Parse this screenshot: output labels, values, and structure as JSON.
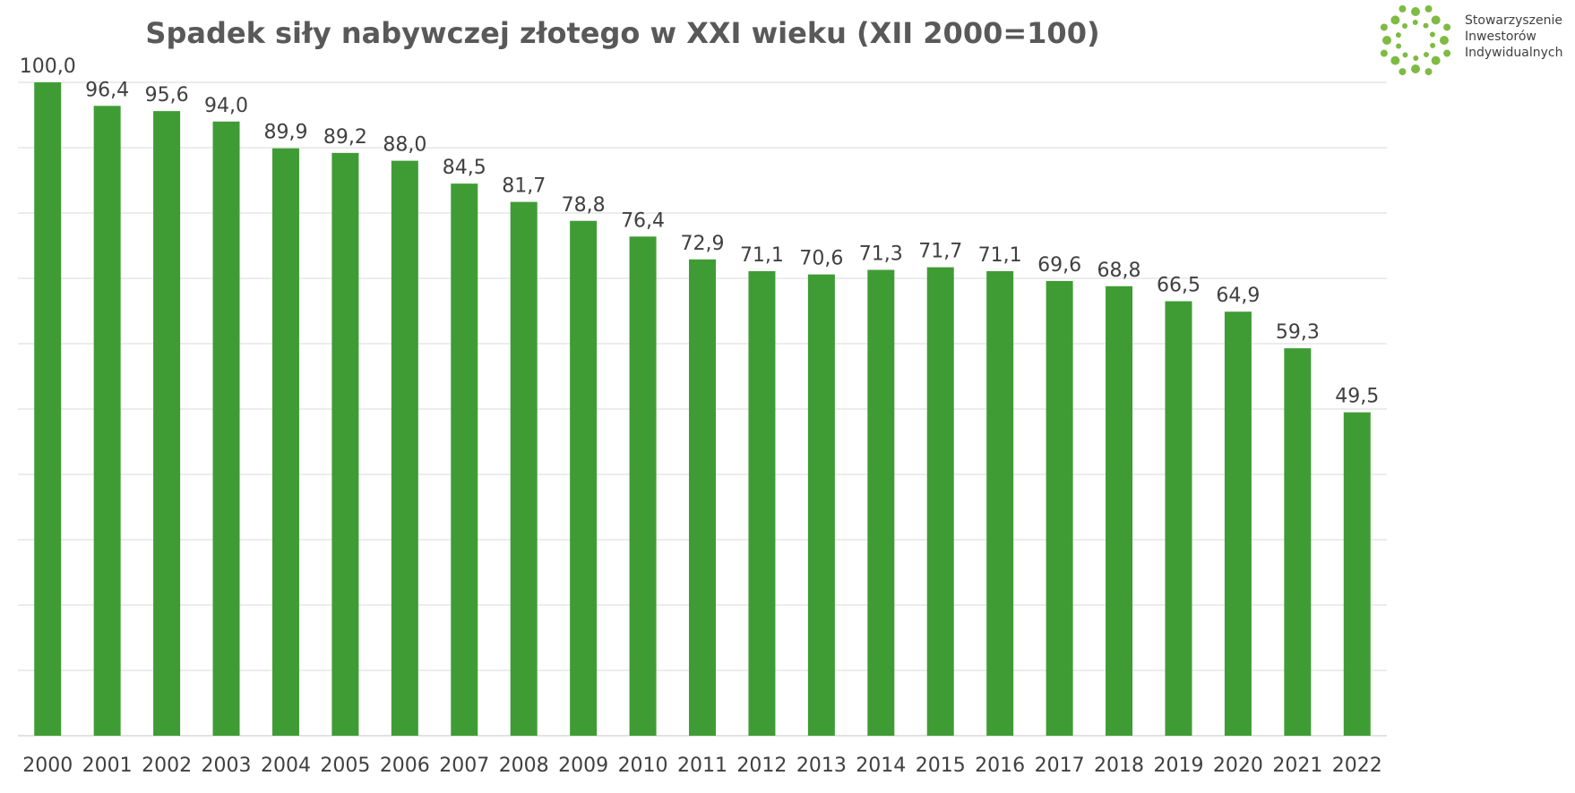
{
  "chart_data": {
    "type": "bar",
    "title": "Spadek siły nabywczej złotego w XXI wieku (XII 2000=100)",
    "categories": [
      "2000",
      "2001",
      "2002",
      "2003",
      "2004",
      "2005",
      "2006",
      "2007",
      "2008",
      "2009",
      "2010",
      "2011",
      "2012",
      "2013",
      "2014",
      "2015",
      "2016",
      "2017",
      "2018",
      "2019",
      "2020",
      "2021",
      "2022"
    ],
    "values": [
      100.0,
      96.4,
      95.6,
      94.0,
      89.9,
      89.2,
      88.0,
      84.5,
      81.7,
      78.8,
      76.4,
      72.9,
      71.1,
      70.6,
      71.3,
      71.7,
      71.1,
      69.6,
      68.8,
      66.5,
      64.9,
      59.3,
      49.5
    ],
    "value_labels": [
      "100,0",
      "96,4",
      "95,6",
      "94,0",
      "89,9",
      "89,2",
      "88,0",
      "84,5",
      "81,7",
      "78,8",
      "76,4",
      "72,9",
      "71,1",
      "70,6",
      "71,3",
      "71,7",
      "71,1",
      "69,6",
      "68,8",
      "66,5",
      "64,9",
      "59,3",
      "49,5"
    ],
    "ylim": [
      0,
      100
    ],
    "grid": true,
    "bar_color": "#3f9c35",
    "grid_color": "#d9d9d9",
    "text_color": "#404040"
  },
  "logo": {
    "line1": "Stowarzyszenie",
    "line2": "Inwestorów",
    "line3": "Indywidualnych",
    "color": "#7dbb42"
  }
}
